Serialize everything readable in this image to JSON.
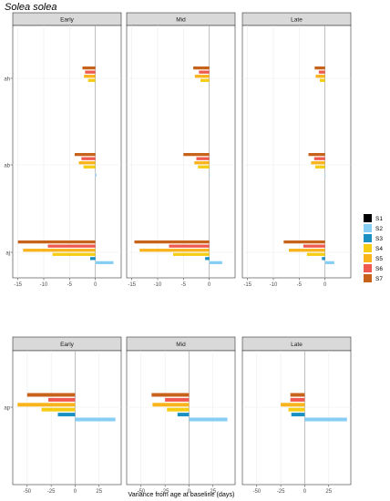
{
  "title": "Solea solea",
  "xlabel": "Variance from age at baseline (days)",
  "legend_position": "right",
  "legend": [
    {
      "name": "S1",
      "color": "#000000"
    },
    {
      "name": "S2",
      "color": "#87CEF5"
    },
    {
      "name": "S3",
      "color": "#1A8FC2"
    },
    {
      "name": "S4",
      "color": "#F5CD13"
    },
    {
      "name": "S5",
      "color": "#F9B41C"
    },
    {
      "name": "S6",
      "color": "#F0594E"
    },
    {
      "name": "S7",
      "color": "#C7621B"
    }
  ],
  "chart_data": [
    {
      "type": "bar",
      "orientation": "horizontal",
      "facets": [
        "Early",
        "Mid",
        "Late"
      ],
      "categories": [
        "ah",
        "ab",
        "aj"
      ],
      "xlim": [
        -16,
        5
      ],
      "xticks": [
        -15,
        -10,
        -5,
        0
      ],
      "grid": true,
      "series_order": [
        "S7",
        "S6",
        "S5",
        "S4",
        "S3",
        "S2"
      ],
      "data": {
        "Early": {
          "ah": {
            "S7": -2.5,
            "S6": -2.0,
            "S5": -2.2,
            "S4": -1.4
          },
          "ab": {
            "S7": -4.0,
            "S6": -2.7,
            "S5": -3.2,
            "S4": -2.3,
            "S2": 0.2
          },
          "aj": {
            "S7": -15.0,
            "S6": -9.2,
            "S5": -14.0,
            "S4": -8.3,
            "S3": -1.0,
            "S2": 3.5
          }
        },
        "Mid": {
          "ah": {
            "S7": -3.1,
            "S6": -2.0,
            "S5": -2.8,
            "S4": -1.7
          },
          "ab": {
            "S7": -5.0,
            "S6": -2.5,
            "S5": -2.9,
            "S4": -2.2,
            "S2": 0.1
          },
          "aj": {
            "S7": -14.5,
            "S6": -7.8,
            "S5": -13.5,
            "S4": -7.0,
            "S3": -0.8,
            "S2": 2.5
          }
        },
        "Late": {
          "ah": {
            "S7": -2.0,
            "S6": -1.2,
            "S5": -1.8,
            "S4": -1.0
          },
          "ab": {
            "S7": -3.2,
            "S6": -2.1,
            "S5": -2.7,
            "S4": -1.9,
            "S2": 0.1
          },
          "aj": {
            "S7": -8.0,
            "S6": -4.2,
            "S5": -7.0,
            "S4": -3.5,
            "S3": -0.6,
            "S2": 1.8
          }
        }
      }
    },
    {
      "type": "bar",
      "orientation": "horizontal",
      "facets": [
        "Early",
        "Mid",
        "Late"
      ],
      "categories": [
        "ap"
      ],
      "xlim": [
        -65,
        48
      ],
      "xticks": [
        -50,
        -25,
        0,
        25
      ],
      "grid": true,
      "series_order": [
        "S7",
        "S6",
        "S5",
        "S4",
        "S3",
        "S2"
      ],
      "data": {
        "Early": {
          "ap": {
            "S7": -50,
            "S6": -28,
            "S5": -60,
            "S4": -35,
            "S3": -18,
            "S2": 42
          }
        },
        "Mid": {
          "ap": {
            "S7": -39,
            "S6": -25,
            "S5": -38,
            "S4": -23,
            "S3": -12,
            "S2": 40
          }
        },
        "Late": {
          "ap": {
            "S7": -15,
            "S6": -15,
            "S5": -25,
            "S4": -17,
            "S3": -14,
            "S2": 44
          }
        }
      }
    }
  ]
}
